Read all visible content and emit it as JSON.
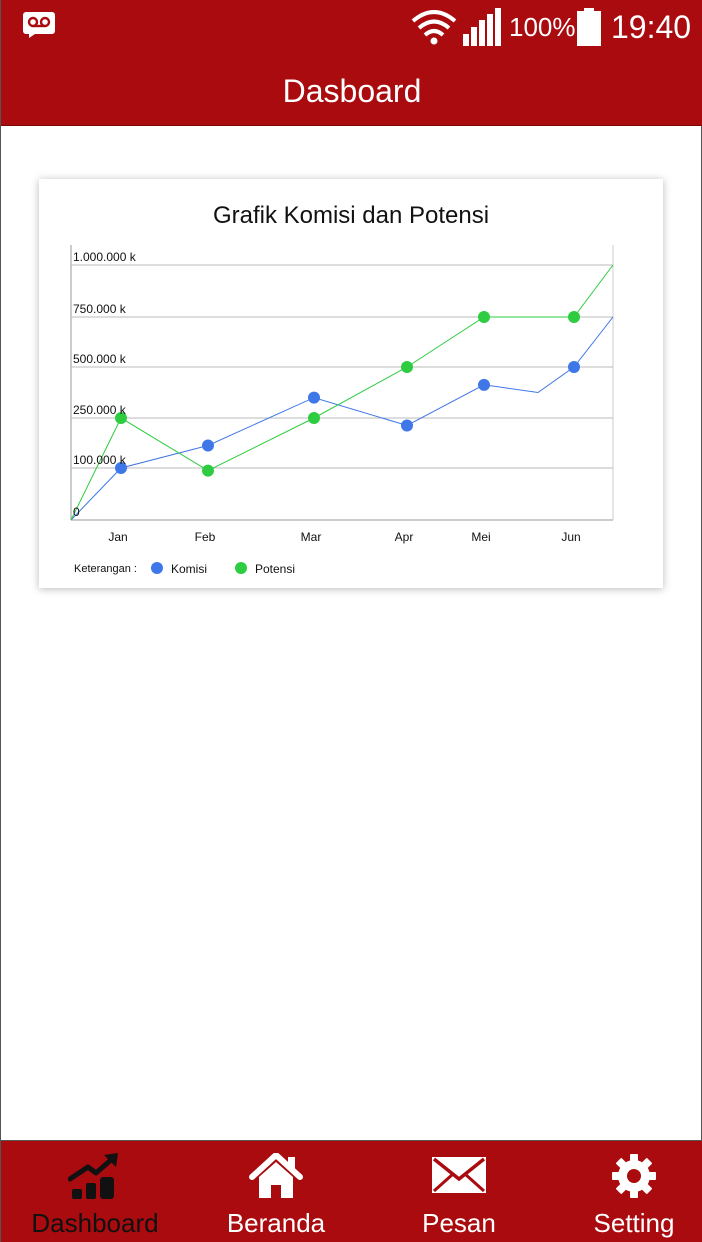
{
  "status_bar": {
    "battery_text": "100%",
    "time": "19:40",
    "icons": [
      "voicemail-icon",
      "wifi-icon",
      "signal-icon",
      "battery-icon"
    ]
  },
  "app_bar": {
    "title": "Dasboard"
  },
  "colors": {
    "brand": "#a90b0f",
    "komisi": "#3f76e8",
    "potensi": "#2ecc40"
  },
  "legend": {
    "caption": "Keterangan :",
    "komisi": "Komisi",
    "potensi": "Potensi"
  },
  "chart_data": {
    "type": "line",
    "title": "Grafik Komisi dan Potensi",
    "y_tick_labels": [
      "0",
      "100.000 k",
      "250.000 k",
      "500.000 k",
      "750.000 k",
      "1.000.000 k"
    ],
    "x_tick_labels": [
      "Jan",
      "Feb",
      "Mar",
      "Apr",
      "Mei",
      "Jun"
    ],
    "grid": true,
    "legend_position": "bottom-left",
    "series": [
      {
        "name": "Komisi",
        "points": [
          {
            "x": 0.0,
            "y": 0,
            "marker": false
          },
          {
            "x": 1.0,
            "y": 1.0,
            "marker": true
          },
          {
            "x": 2.0,
            "y": 1.45,
            "marker": true
          },
          {
            "x": 3.0,
            "y": 2.4,
            "marker": true
          },
          {
            "x": 4.0,
            "y": 1.85,
            "marker": true
          },
          {
            "x": 5.0,
            "y": 2.65,
            "marker": true
          },
          {
            "x": 5.6,
            "y": 2.5,
            "marker": false
          },
          {
            "x": 6.0,
            "y": 3.0,
            "marker": true
          },
          {
            "x": 6.45,
            "y": 4.0,
            "marker": false
          }
        ]
      },
      {
        "name": "Potensi",
        "points": [
          {
            "x": 0.0,
            "y": 0,
            "marker": false
          },
          {
            "x": 1.0,
            "y": 2.0,
            "marker": true
          },
          {
            "x": 2.0,
            "y": 0.95,
            "marker": true
          },
          {
            "x": 3.0,
            "y": 2.0,
            "marker": true
          },
          {
            "x": 4.0,
            "y": 3.0,
            "marker": true
          },
          {
            "x": 5.0,
            "y": 4.0,
            "marker": true
          },
          {
            "x": 6.0,
            "y": 4.0,
            "marker": true
          },
          {
            "x": 6.45,
            "y": 5.0,
            "marker": false
          }
        ]
      }
    ]
  },
  "bottom_nav": [
    {
      "label": "Dashboard",
      "icon": "chart-growth-icon",
      "active": true
    },
    {
      "label": "Beranda",
      "icon": "home-icon",
      "active": false
    },
    {
      "label": "Pesan",
      "icon": "envelope-icon",
      "active": false
    },
    {
      "label": "Setting",
      "icon": "gear-icon",
      "active": false
    }
  ]
}
